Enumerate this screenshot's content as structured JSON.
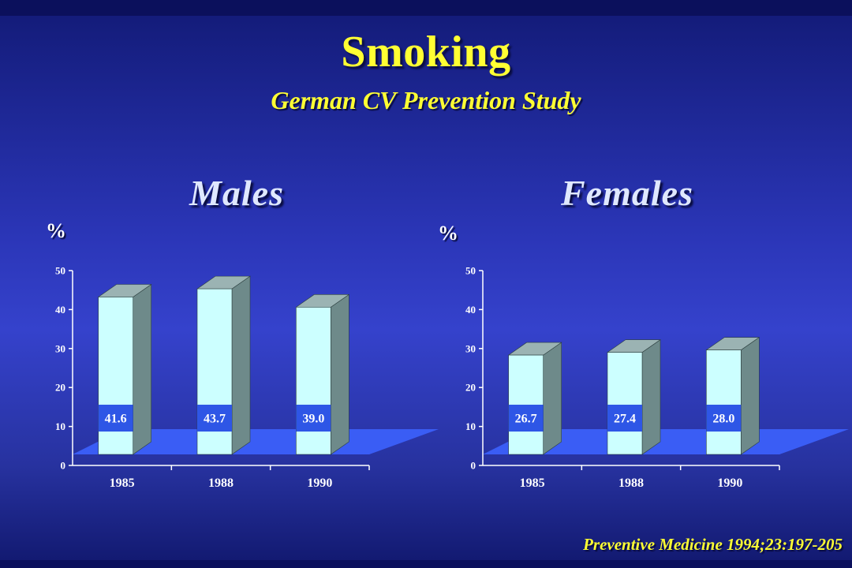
{
  "title": "Smoking",
  "subtitle": "German CV Prevention Study",
  "source": "Preventive Medicine 1994;23:197-205",
  "colors": {
    "title": "#ffff33",
    "bar_front": "#ccffff",
    "bar_side": "#6e8a8a",
    "bar_top": "#9bb3b3",
    "floor": "#3a5df5",
    "label_box": "#2e56e6"
  },
  "chart_data": [
    {
      "type": "bar",
      "title": "Males",
      "ylabel": "%",
      "categories": [
        "1985",
        "1988",
        "1990"
      ],
      "values": [
        41.6,
        43.7,
        39.0
      ],
      "value_labels": [
        "41.6",
        "43.7",
        "39.0"
      ],
      "ylim": [
        0,
        50
      ],
      "yticks": [
        "0",
        "10",
        "20",
        "30",
        "40",
        "50"
      ],
      "style": "3d"
    },
    {
      "type": "bar",
      "title": "Females",
      "ylabel": "%",
      "categories": [
        "1985",
        "1988",
        "1990"
      ],
      "values": [
        26.7,
        27.4,
        28.0
      ],
      "value_labels": [
        "26.7",
        "27.4",
        "28.0"
      ],
      "ylim": [
        0,
        50
      ],
      "yticks": [
        "0",
        "10",
        "20",
        "30",
        "40",
        "50"
      ],
      "style": "3d"
    }
  ]
}
